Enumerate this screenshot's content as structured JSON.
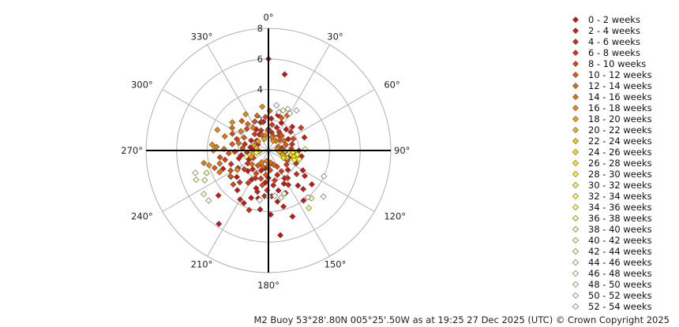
{
  "chart_data": {
    "type": "scatter",
    "projection": "polar",
    "angle_unit": "degrees",
    "angle_direction": "clockwise from north",
    "radial_ticks": [
      0,
      2,
      4,
      6,
      8
    ],
    "rlim": [
      0,
      8
    ],
    "angle_ticks": [
      0,
      30,
      60,
      90,
      120,
      150,
      180,
      210,
      240,
      270,
      300,
      330
    ],
    "angle_tick_labels": [
      "0°",
      "30°",
      "60°",
      "90°",
      "120°",
      "150°",
      "180°",
      "210°",
      "240°",
      "270°",
      "300°",
      "330°"
    ],
    "grid": true,
    "legend_position": "right",
    "series": [
      {
        "name": "0 - 2 weeks",
        "color": "#cc1111",
        "points": [
          [
            140,
            3.0
          ],
          [
            155,
            2.4
          ],
          [
            170,
            3.4
          ],
          [
            185,
            2.1
          ],
          [
            200,
            3.3
          ],
          [
            210,
            2.2
          ],
          [
            225,
            1.9
          ],
          [
            235,
            3.0
          ],
          [
            245,
            1.4
          ],
          [
            260,
            1.8
          ],
          [
            160,
            4.6
          ],
          [
            172,
            5.6
          ],
          [
            214,
            5.8
          ],
          [
            205,
            3.8
          ],
          [
            192,
            3.2
          ],
          [
            178,
            4.2
          ],
          [
            150,
            2.1
          ],
          [
            135,
            1.8
          ],
          [
            120,
            2.6
          ],
          [
            110,
            1.4
          ],
          [
            95,
            1.1
          ],
          [
            80,
            0.9
          ],
          [
            60,
            1.5
          ],
          [
            40,
            1.8
          ],
          [
            25,
            2.0
          ],
          [
            15,
            2.4
          ],
          [
            5,
            2.1
          ],
          [
            350,
            1.9
          ],
          [
            330,
            1.6
          ],
          [
            300,
            1.3
          ],
          [
            280,
            1.2
          ],
          [
            230,
            2.7
          ],
          [
            218,
            3.3
          ],
          [
            198,
            2.6
          ],
          [
            188,
            3.9
          ],
          [
            166,
            2.7
          ],
          [
            145,
            4.0
          ],
          [
            128,
            3.6
          ],
          [
            0,
            6.0
          ],
          [
            12,
            5.1
          ]
        ]
      },
      {
        "name": "2 - 4 weeks",
        "color": "#d01a10",
        "points": [
          [
            150,
            2.6
          ],
          [
            165,
            3.8
          ],
          [
            180,
            1.8
          ],
          [
            195,
            2.8
          ],
          [
            220,
            1.6
          ],
          [
            240,
            2.3
          ],
          [
            255,
            2.0
          ],
          [
            270,
            1.0
          ],
          [
            300,
            0.8
          ],
          [
            330,
            1.2
          ],
          [
            0,
            1.4
          ],
          [
            20,
            1.6
          ],
          [
            45,
            2.2
          ],
          [
            70,
            2.5
          ],
          [
            100,
            2.2
          ],
          [
            125,
            2.9
          ],
          [
            138,
            3.4
          ],
          [
            210,
            3.7
          ],
          [
            228,
            4.4
          ],
          [
            248,
            3.2
          ],
          [
            172,
            2.3
          ],
          [
            200,
            1.4
          ],
          [
            160,
            1.7
          ],
          [
            190,
            1.2
          ]
        ]
      },
      {
        "name": "4 - 6 weeks",
        "color": "#d42a0c",
        "points": [
          [
            145,
            2.2
          ],
          [
            158,
            3.0
          ],
          [
            185,
            3.0
          ],
          [
            205,
            2.0
          ],
          [
            222,
            2.8
          ],
          [
            238,
            1.6
          ],
          [
            250,
            2.6
          ],
          [
            265,
            1.4
          ],
          [
            285,
            1.6
          ],
          [
            310,
            1.0
          ],
          [
            340,
            1.4
          ],
          [
            10,
            1.2
          ],
          [
            30,
            1.4
          ],
          [
            50,
            1.9
          ],
          [
            75,
            1.6
          ],
          [
            90,
            2.0
          ],
          [
            115,
            2.0
          ],
          [
            130,
            2.4
          ],
          [
            198,
            4.1
          ],
          [
            176,
            3.0
          ]
        ]
      },
      {
        "name": "6 - 8 weeks",
        "color": "#d8380b",
        "points": [
          [
            148,
            1.6
          ],
          [
            168,
            2.0
          ],
          [
            182,
            2.6
          ],
          [
            212,
            2.5
          ],
          [
            232,
            2.0
          ],
          [
            244,
            1.1
          ],
          [
            258,
            2.9
          ],
          [
            268,
            2.2
          ],
          [
            290,
            2.2
          ],
          [
            320,
            1.4
          ],
          [
            345,
            1.9
          ],
          [
            8,
            1.7
          ],
          [
            35,
            1.2
          ],
          [
            55,
            2.6
          ],
          [
            85,
            1.5
          ],
          [
            105,
            1.7
          ],
          [
            128,
            1.5
          ],
          [
            195,
            1.9
          ]
        ]
      },
      {
        "name": "8 - 10 weeks",
        "color": "#dc480a",
        "points": [
          [
            152,
            1.2
          ],
          [
            175,
            1.3
          ],
          [
            190,
            2.3
          ],
          [
            208,
            1.7
          ],
          [
            226,
            3.2
          ],
          [
            242,
            2.8
          ],
          [
            262,
            3.2
          ],
          [
            275,
            1.7
          ],
          [
            295,
            2.6
          ],
          [
            315,
            2.0
          ],
          [
            335,
            2.1
          ],
          [
            355,
            2.2
          ],
          [
            18,
            1.0
          ],
          [
            42,
            1.3
          ],
          [
            65,
            1.8
          ],
          [
            95,
            1.6
          ],
          [
            118,
            1.4
          ]
        ]
      },
      {
        "name": "10 - 12 weeks",
        "color": "#e05808",
        "points": [
          [
            160,
            1.0
          ],
          [
            186,
            1.6
          ],
          [
            215,
            1.2
          ],
          [
            236,
            3.0
          ],
          [
            252,
            3.7
          ],
          [
            266,
            2.6
          ],
          [
            280,
            2.4
          ],
          [
            298,
            1.8
          ],
          [
            318,
            2.6
          ],
          [
            338,
            1.1
          ],
          [
            358,
            1.3
          ],
          [
            22,
            2.3
          ],
          [
            48,
            1.0
          ],
          [
            72,
            1.2
          ]
        ]
      },
      {
        "name": "12 - 14 weeks",
        "color": "#e46806",
        "points": [
          [
            170,
            0.8
          ],
          [
            200,
            1.1
          ],
          [
            230,
            1.4
          ],
          [
            255,
            3.3
          ],
          [
            272,
            2.9
          ],
          [
            284,
            2.0
          ],
          [
            302,
            2.8
          ],
          [
            322,
            2.2
          ],
          [
            342,
            2.4
          ],
          [
            2,
            2.6
          ],
          [
            28,
            2.6
          ],
          [
            58,
            1.2
          ],
          [
            88,
            0.9
          ]
        ]
      },
      {
        "name": "14 - 16 weeks",
        "color": "#e87805",
        "points": [
          [
            180,
            1.0
          ],
          [
            210,
            0.9
          ],
          [
            246,
            3.5
          ],
          [
            259,
            4.3
          ],
          [
            274,
            3.4
          ],
          [
            288,
            3.0
          ],
          [
            305,
            2.2
          ],
          [
            326,
            1.8
          ],
          [
            348,
            1.0
          ],
          [
            14,
            0.9
          ],
          [
            38,
            0.8
          ],
          [
            68,
            0.7
          ]
        ]
      },
      {
        "name": "16 - 18 weeks",
        "color": "#ec8804",
        "points": [
          [
            190,
            0.7
          ],
          [
            238,
            2.4
          ],
          [
            256,
            4.0
          ],
          [
            276,
            3.7
          ],
          [
            292,
            3.6
          ],
          [
            308,
            3.0
          ],
          [
            328,
            2.8
          ],
          [
            352,
            2.9
          ],
          [
            26,
            0.7
          ],
          [
            78,
            0.6
          ]
        ]
      },
      {
        "name": "18 - 20 weeks",
        "color": "#efa004",
        "points": [
          [
            250,
            1.2
          ],
          [
            270,
            3.6
          ],
          [
            290,
            1.0
          ],
          [
            312,
            0.9
          ],
          [
            340,
            0.8
          ],
          [
            100,
            0.8
          ]
        ]
      },
      {
        "name": "20 - 22 weeks",
        "color": "#f2b803",
        "points": [
          [
            260,
            1.0
          ],
          [
            282,
            0.8
          ],
          [
            108,
            1.0
          ],
          [
            96,
            0.7
          ]
        ]
      },
      {
        "name": "22 - 24 weeks",
        "color": "#f5cd02",
        "points": [
          [
            264,
            0.6
          ],
          [
            112,
            1.3
          ],
          [
            92,
            1.1
          ]
        ]
      },
      {
        "name": "24 - 26 weeks",
        "color": "#f8e002",
        "points": [
          [
            100,
            1.5
          ],
          [
            116,
            1.1
          ]
        ]
      },
      {
        "name": "26 - 28 weeks",
        "color": "#fbef05",
        "points": [
          [
            104,
            1.7
          ],
          [
            94,
            1.6
          ]
        ]
      },
      {
        "name": "28 - 30 weeks",
        "color": "#fdf81a",
        "points": [
          [
            98,
            1.9
          ],
          [
            110,
            1.8
          ]
        ]
      },
      {
        "name": "30 - 32 weeks",
        "color": "#fefd45",
        "points": [
          [
            106,
            2.1
          ]
        ]
      },
      {
        "name": "32 - 34 weeks",
        "color": "#fefe5e",
        "points": [
          [
            260,
            0.8
          ]
        ]
      },
      {
        "name": "34 - 36 weeks",
        "color": "#ffff78",
        "points": [
          [
            145,
            4.6
          ],
          [
            255,
            1.5
          ]
        ]
      },
      {
        "name": "36 - 38 weeks",
        "color": "#ffff90",
        "points": [
          [
            138,
            4.2
          ]
        ]
      },
      {
        "name": "38 - 40 weeks",
        "color": "#ffffa6",
        "points": [
          [
            88,
            2.4
          ],
          [
            250,
            4.3
          ]
        ]
      },
      {
        "name": "40 - 42 weeks",
        "color": "#ffffb8",
        "points": [
          [
            245,
            4.6
          ],
          [
            20,
            2.8
          ]
        ]
      },
      {
        "name": "42 - 44 weeks",
        "color": "#ffffc8",
        "points": [
          [
            248,
            5.1
          ],
          [
            236,
            5.1
          ]
        ]
      },
      {
        "name": "44 - 46 weeks",
        "color": "#ffffd8",
        "points": [
          [
            160,
            3.0
          ],
          [
            165,
            3.2
          ]
        ]
      },
      {
        "name": "46 - 48 weeks",
        "color": "#ffffe4",
        "points": [
          [
            230,
            5.1
          ],
          [
            180,
            3.0
          ]
        ]
      },
      {
        "name": "48 - 50 weeks",
        "color": "#ffffee",
        "points": [
          [
            15,
            2.6
          ],
          [
            25,
            3.0
          ],
          [
            253,
            5.0
          ]
        ]
      },
      {
        "name": "50 - 52 weeks",
        "color": "#fffff6",
        "points": [
          [
            30,
            2.8
          ],
          [
            172,
            3.0
          ],
          [
            130,
            4.7
          ]
        ]
      },
      {
        "name": "52 - 54 weeks",
        "color": "#ffffff",
        "points": [
          [
            10,
            3.0
          ],
          [
            35,
            3.2
          ],
          [
            190,
            3.3
          ],
          [
            140,
            4.0
          ],
          [
            115,
            4.0
          ]
        ]
      }
    ]
  },
  "footer": "M2 Buoy 53°28'.80N 005°25'.50W as at 19:25 27 Dec 2025 (UTC) © Crown Copyright 2025"
}
